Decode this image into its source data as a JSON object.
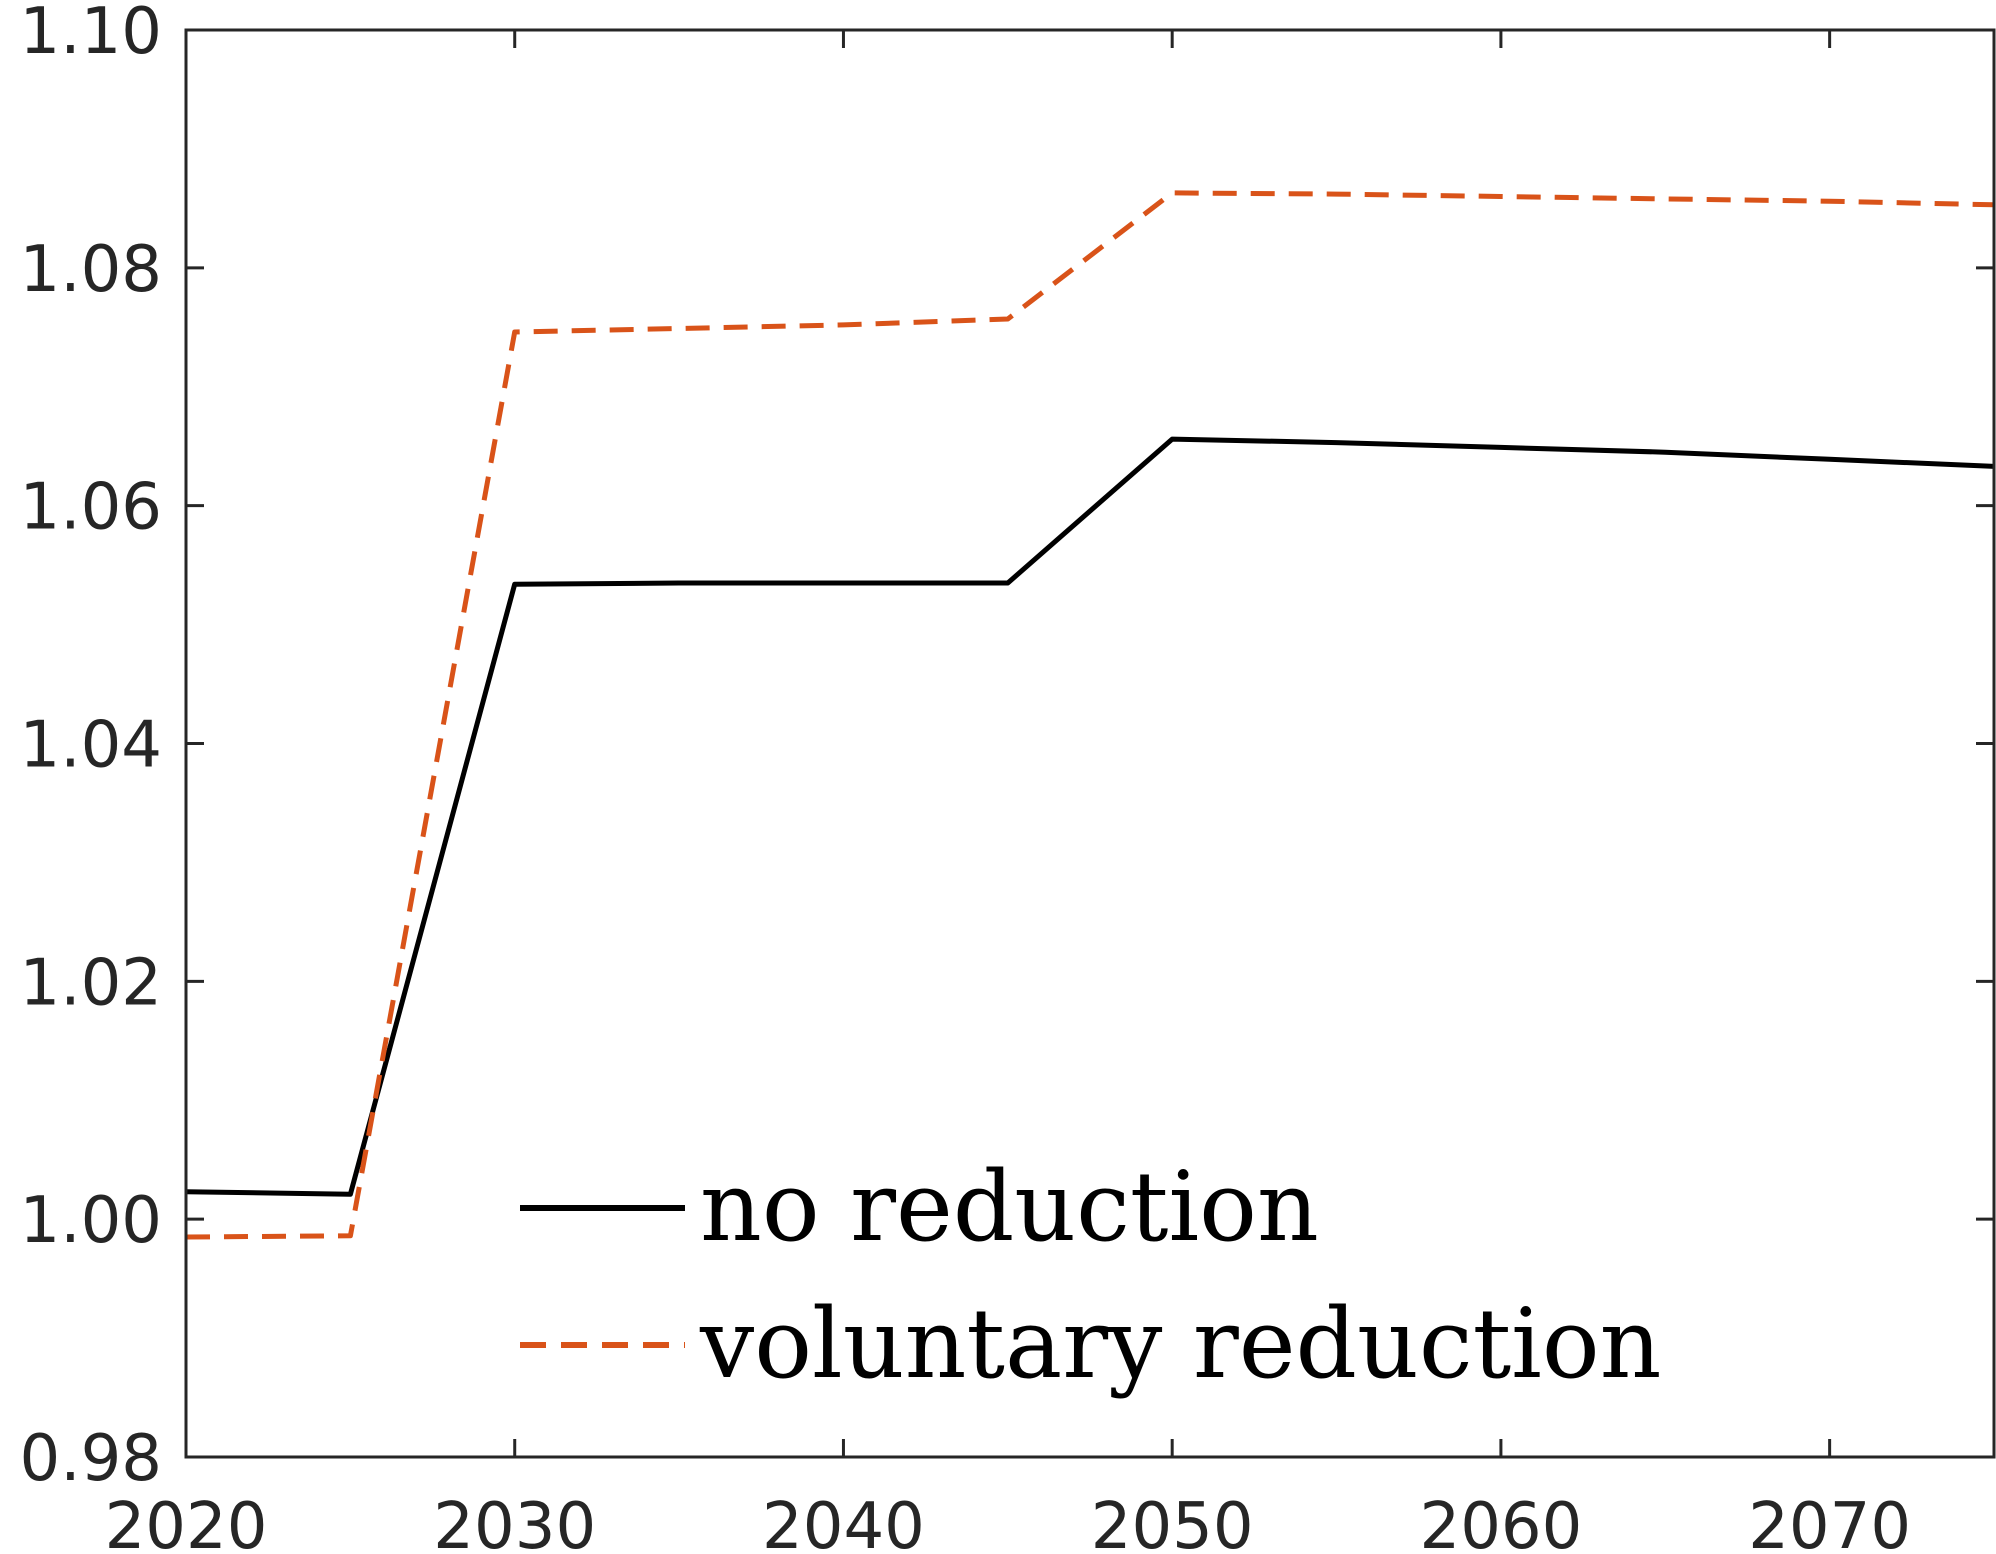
{
  "chart_data": {
    "type": "line",
    "title": "",
    "xlabel": "",
    "ylabel": "",
    "xlim": [
      2020,
      2075
    ],
    "ylim": [
      0.98,
      1.1
    ],
    "xticks": [
      "2020",
      "2030",
      "2040",
      "2050",
      "2060",
      "2070"
    ],
    "yticks": [
      "0.98",
      "1.00",
      "1.02",
      "1.04",
      "1.06",
      "1.08",
      "1.10"
    ],
    "grid": false,
    "legend_position": "bottom-center",
    "series": [
      {
        "name": "no reduction",
        "color": "#000000",
        "style": "solid",
        "x": [
          2020,
          2025,
          2030,
          2035,
          2040,
          2045,
          2050,
          2055,
          2060,
          2065,
          2070,
          2075
        ],
        "y": [
          1.0023,
          1.0021,
          1.0534,
          1.0535,
          1.0535,
          1.0535,
          1.0656,
          1.0653,
          1.0649,
          1.0645,
          1.0639,
          1.0633
        ]
      },
      {
        "name": "voluntary reduction",
        "color": "#D95319",
        "style": "dashed",
        "x": [
          2020,
          2025,
          2030,
          2035,
          2040,
          2045,
          2050,
          2055,
          2060,
          2065,
          2070,
          2075
        ],
        "y": [
          0.9985,
          0.9986,
          1.0746,
          1.0749,
          1.0752,
          1.0757,
          1.0863,
          1.0862,
          1.086,
          1.0858,
          1.0856,
          1.0853
        ]
      }
    ]
  }
}
